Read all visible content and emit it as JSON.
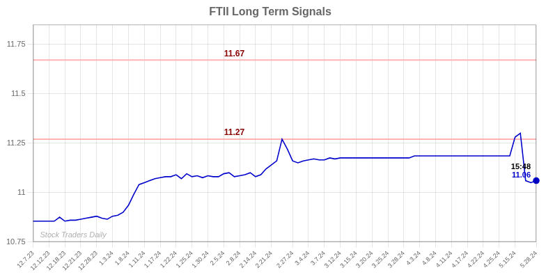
{
  "chart_data": {
    "type": "line",
    "title": "FTII Long Term Signals",
    "categories": [
      "12.7.23",
      null,
      null,
      "12.12.23",
      null,
      null,
      "12.18.23",
      null,
      null,
      "12.21.23",
      null,
      null,
      "12.28.23",
      null,
      null,
      "1.3.24",
      null,
      null,
      "1.8.24",
      null,
      null,
      "1.11.24",
      null,
      null,
      "1.17.24",
      null,
      null,
      "1.22.24",
      null,
      null,
      "1.25.24",
      null,
      null,
      "1.30.24",
      null,
      null,
      "2.5.24",
      null,
      null,
      "2.8.24",
      null,
      null,
      "2.14.24",
      null,
      null,
      "2.21.24",
      null,
      null,
      null,
      "2.27.24",
      null,
      null,
      "3.4.24",
      null,
      null,
      "3.7.24",
      null,
      null,
      "3.12.24",
      null,
      null,
      "3.15.24",
      null,
      null,
      "3.20.24",
      null,
      null,
      "3.25.24",
      null,
      null,
      "3.28.24",
      null,
      null,
      "4.3.24",
      null,
      null,
      "4.8.24",
      null,
      null,
      "4.11.24",
      null,
      null,
      "4.17.24",
      null,
      null,
      "4.22.24",
      null,
      null,
      "4.25.24",
      null,
      null,
      "5.15.24",
      null,
      null,
      null,
      "5.28.24"
    ],
    "values": [
      10.855,
      10.855,
      10.855,
      10.855,
      10.855,
      10.875,
      10.855,
      10.86,
      10.86,
      10.865,
      10.87,
      10.875,
      10.88,
      10.87,
      10.865,
      10.88,
      10.885,
      10.9,
      10.935,
      10.99,
      11.04,
      11.05,
      11.06,
      11.07,
      11.075,
      11.08,
      11.08,
      11.09,
      11.07,
      11.095,
      11.08,
      11.085,
      11.075,
      11.085,
      11.08,
      11.08,
      11.095,
      11.1,
      11.08,
      11.085,
      11.09,
      11.1,
      11.08,
      11.09,
      11.12,
      11.14,
      11.16,
      11.27,
      11.22,
      11.16,
      11.15,
      11.16,
      11.165,
      11.17,
      11.165,
      11.165,
      11.175,
      11.17,
      11.175,
      11.175,
      11.175,
      11.175,
      11.175,
      11.175,
      11.175,
      11.175,
      11.175,
      11.175,
      11.175,
      11.175,
      11.175,
      11.175,
      11.185,
      11.185,
      11.185,
      11.185,
      11.185,
      11.185,
      11.185,
      11.185,
      11.185,
      11.185,
      11.185,
      11.185,
      11.185,
      11.185,
      11.185,
      11.185,
      11.185,
      11.185,
      11.185,
      11.28,
      11.3,
      11.06,
      11.05,
      11.06
    ],
    "color": "#0000cc",
    "ylim": [
      10.75,
      11.85
    ],
    "yticks": [
      10.75,
      11,
      11.25,
      11.5,
      11.75
    ],
    "grid": true,
    "reference_lines": [
      {
        "value": 11.67,
        "label": "11.67",
        "color": "#ffb3b3",
        "label_color": "#880000"
      },
      {
        "value": 11.27,
        "label": "11.27",
        "color": "#ffb3b3",
        "label_color": "#880000"
      }
    ],
    "annotations": [
      {
        "text": "15:48"
      },
      {
        "text": "11.06",
        "color": "#0000cc"
      },
      {
        "text": "Stock Traders Daily"
      }
    ]
  }
}
